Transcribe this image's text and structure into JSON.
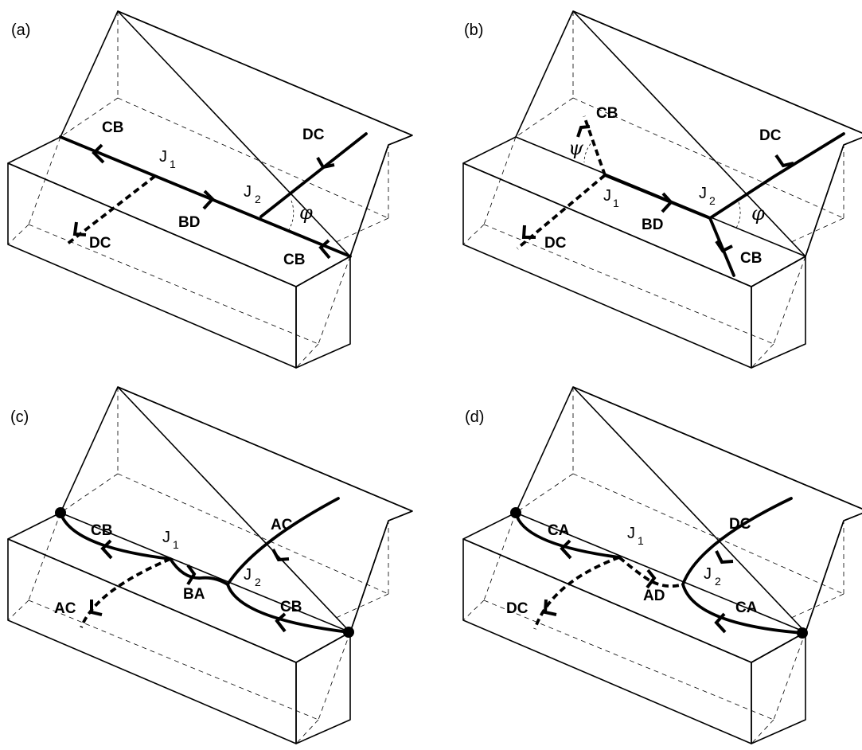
{
  "panels": {
    "a": {
      "letter": "(a)",
      "cb1": "CB",
      "cb2": "CB",
      "dc1": "DC",
      "dc2": "DC",
      "bd": "BD",
      "j1": "J",
      "j1s": "1",
      "j2": "J",
      "j2s": "2",
      "phi": "φ"
    },
    "b": {
      "letter": "(b)",
      "cb1": "CB",
      "cb2": "CB",
      "dc1": "DC",
      "dc2": "DC",
      "bd": "BD",
      "j1": "J",
      "j1s": "1",
      "j2": "J",
      "j2s": "2",
      "phi": "φ",
      "psi": "ψ"
    },
    "c": {
      "letter": "(c)",
      "cb1": "CB",
      "cb2": "CB",
      "ac1": "AC",
      "ac2": "AC",
      "ba": "BA",
      "j1": "J",
      "j1s": "1",
      "j2": "J",
      "j2s": "2"
    },
    "d": {
      "letter": "(d)",
      "ca1": "CA",
      "ca2": "CA",
      "dc1": "DC",
      "dc2": "DC",
      "ad": "AD",
      "j1": "J",
      "j1s": "1",
      "j2": "J",
      "j2s": "2"
    }
  }
}
